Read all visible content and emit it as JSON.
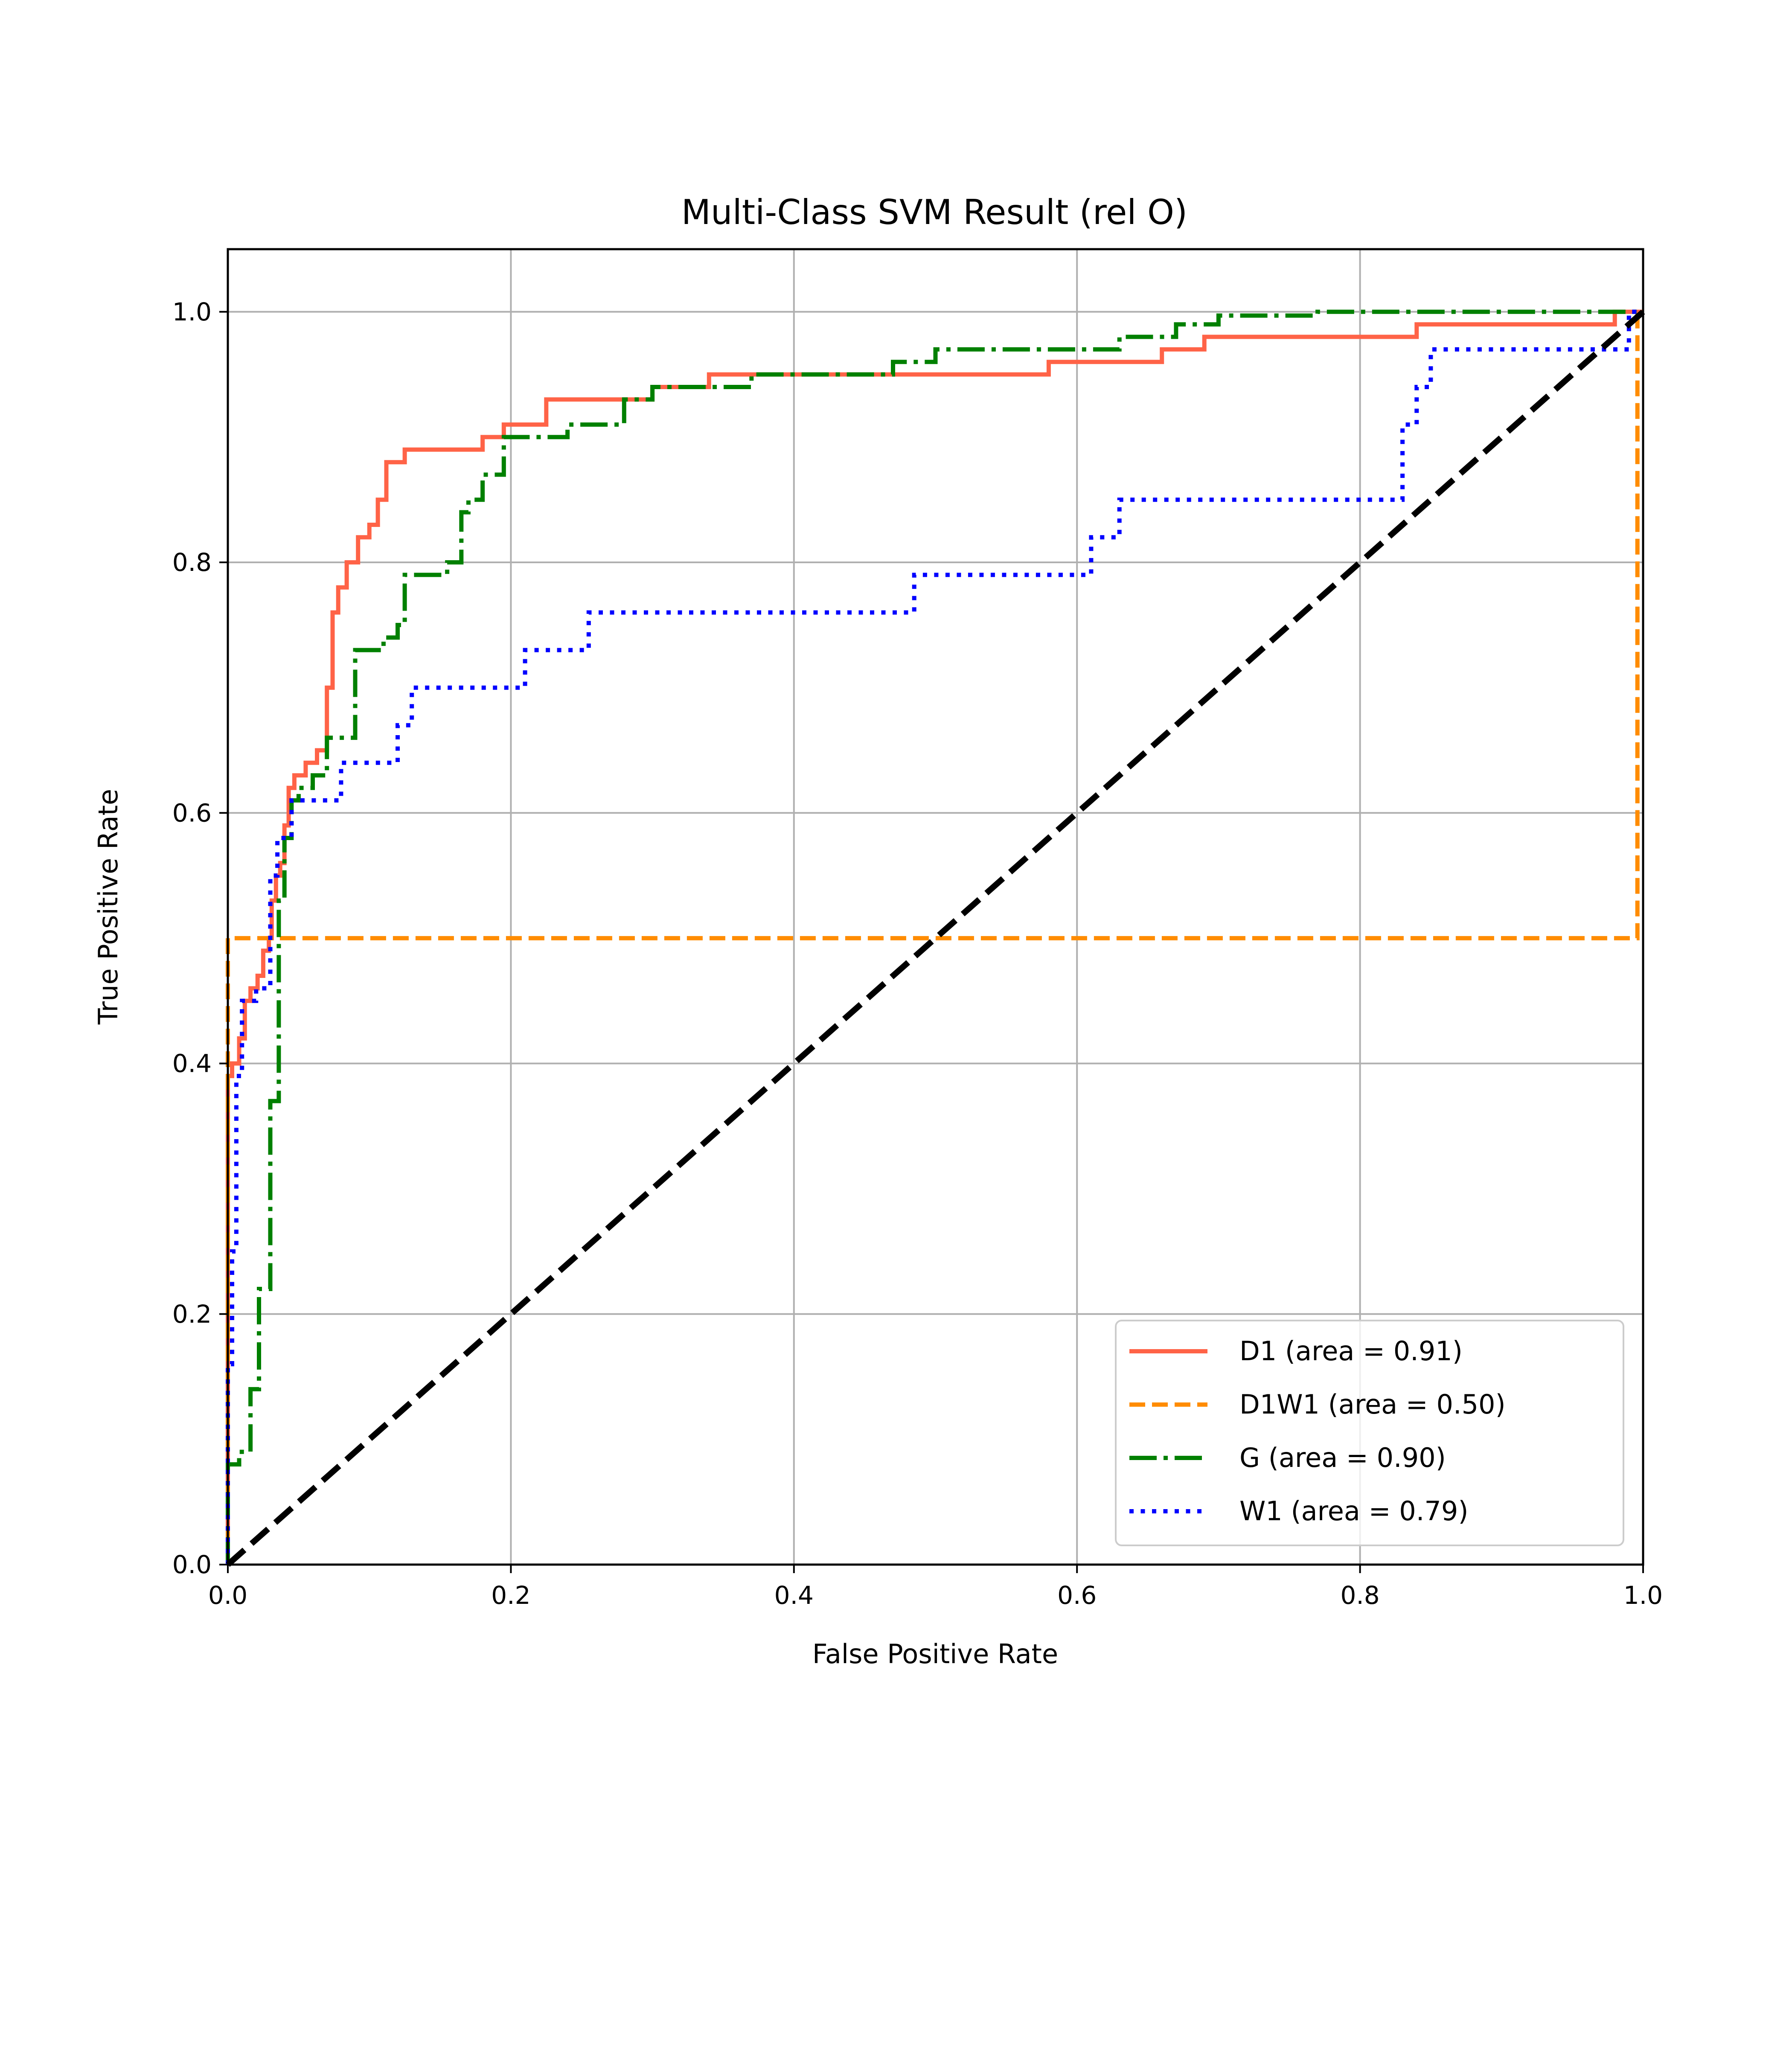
{
  "chart_data": {
    "type": "line",
    "title": "Multi-Class SVM Result (rel O)",
    "xlabel": "False Positive Rate",
    "ylabel": "True Positive Rate",
    "xlim": [
      0.0,
      1.0
    ],
    "ylim": [
      0.0,
      1.05
    ],
    "xticks": [
      "0.0",
      "0.2",
      "0.4",
      "0.6",
      "0.8",
      "1.0"
    ],
    "yticks": [
      "0.0",
      "0.2",
      "0.4",
      "0.6",
      "0.8",
      "1.0"
    ],
    "grid": true,
    "legend_position": "lower right",
    "series": [
      {
        "name": "D1 (area = 0.91)",
        "color": "#ff6347",
        "style": "solid",
        "x": [
          0.0,
          0.0,
          0.003,
          0.003,
          0.008,
          0.008,
          0.012,
          0.012,
          0.016,
          0.016,
          0.021,
          0.021,
          0.025,
          0.025,
          0.029,
          0.029,
          0.031,
          0.031,
          0.034,
          0.034,
          0.037,
          0.037,
          0.04,
          0.04,
          0.043,
          0.043,
          0.047,
          0.047,
          0.055,
          0.055,
          0.063,
          0.063,
          0.07,
          0.07,
          0.074,
          0.074,
          0.078,
          0.078,
          0.08,
          0.08,
          0.084,
          0.084,
          0.092,
          0.092,
          0.1,
          0.1,
          0.106,
          0.106,
          0.11,
          0.11,
          0.112,
          0.112,
          0.125,
          0.125,
          0.18,
          0.18,
          0.195,
          0.195,
          0.225,
          0.225,
          0.27,
          0.27,
          0.3,
          0.3,
          0.34,
          0.34,
          0.38,
          0.38,
          0.58,
          0.58,
          0.66,
          0.66,
          0.69,
          0.69,
          0.84,
          0.84,
          0.98,
          0.98,
          1.0
        ],
        "y": [
          0.0,
          0.39,
          0.39,
          0.4,
          0.4,
          0.42,
          0.42,
          0.45,
          0.45,
          0.46,
          0.46,
          0.47,
          0.47,
          0.49,
          0.49,
          0.5,
          0.5,
          0.53,
          0.53,
          0.55,
          0.55,
          0.56,
          0.56,
          0.59,
          0.59,
          0.62,
          0.62,
          0.63,
          0.63,
          0.64,
          0.64,
          0.65,
          0.65,
          0.7,
          0.7,
          0.76,
          0.76,
          0.78,
          0.78,
          0.78,
          0.78,
          0.8,
          0.8,
          0.82,
          0.82,
          0.83,
          0.83,
          0.85,
          0.85,
          0.85,
          0.85,
          0.88,
          0.88,
          0.89,
          0.89,
          0.9,
          0.9,
          0.91,
          0.91,
          0.93,
          0.93,
          0.93,
          0.93,
          0.94,
          0.94,
          0.95,
          0.95,
          0.95,
          0.95,
          0.96,
          0.96,
          0.97,
          0.97,
          0.98,
          0.98,
          0.99,
          0.99,
          1.0,
          1.0
        ]
      },
      {
        "name": "D1W1 (area = 0.50)",
        "color": "#ff8c00",
        "style": "dashed",
        "x": [
          0.0,
          0.0,
          0.996,
          0.996,
          1.0
        ],
        "y": [
          0.0,
          0.5,
          0.5,
          1.0,
          1.0
        ]
      },
      {
        "name": "G (area = 0.90)",
        "color": "#008000",
        "style": "dashdot",
        "x": [
          0.0,
          0.0,
          0.008,
          0.008,
          0.016,
          0.016,
          0.022,
          0.022,
          0.03,
          0.03,
          0.036,
          0.036,
          0.04,
          0.04,
          0.045,
          0.045,
          0.05,
          0.05,
          0.06,
          0.06,
          0.07,
          0.07,
          0.09,
          0.09,
          0.11,
          0.11,
          0.12,
          0.12,
          0.125,
          0.125,
          0.155,
          0.155,
          0.165,
          0.165,
          0.17,
          0.17,
          0.18,
          0.18,
          0.195,
          0.195,
          0.24,
          0.24,
          0.28,
          0.28,
          0.3,
          0.3,
          0.37,
          0.37,
          0.47,
          0.47,
          0.5,
          0.5,
          0.51,
          0.51,
          0.52,
          0.52,
          0.63,
          0.63,
          0.67,
          0.67,
          0.68,
          0.68,
          0.7,
          0.7,
          0.77,
          0.77,
          1.0
        ],
        "y": [
          0.0,
          0.08,
          0.08,
          0.09,
          0.09,
          0.14,
          0.14,
          0.22,
          0.22,
          0.37,
          0.37,
          0.53,
          0.53,
          0.58,
          0.58,
          0.61,
          0.61,
          0.62,
          0.62,
          0.63,
          0.63,
          0.66,
          0.66,
          0.73,
          0.73,
          0.74,
          0.74,
          0.75,
          0.75,
          0.79,
          0.79,
          0.8,
          0.8,
          0.84,
          0.84,
          0.85,
          0.85,
          0.87,
          0.87,
          0.9,
          0.9,
          0.91,
          0.91,
          0.93,
          0.93,
          0.94,
          0.94,
          0.95,
          0.95,
          0.96,
          0.96,
          0.97,
          0.97,
          0.97,
          0.97,
          0.97,
          0.97,
          0.98,
          0.98,
          0.99,
          0.99,
          0.99,
          0.99,
          0.997,
          0.997,
          1.0,
          1.0
        ]
      },
      {
        "name": "W1 (area = 0.79)",
        "color": "#0000ff",
        "style": "dotted",
        "x": [
          0.0,
          0.0,
          0.003,
          0.003,
          0.006,
          0.006,
          0.01,
          0.01,
          0.02,
          0.02,
          0.03,
          0.03,
          0.035,
          0.035,
          0.045,
          0.045,
          0.08,
          0.08,
          0.12,
          0.12,
          0.13,
          0.13,
          0.21,
          0.21,
          0.255,
          0.255,
          0.485,
          0.485,
          0.61,
          0.61,
          0.63,
          0.63,
          0.83,
          0.83,
          0.84,
          0.84,
          0.85,
          0.85,
          0.99,
          0.99,
          1.0
        ],
        "y": [
          0.0,
          0.16,
          0.16,
          0.25,
          0.25,
          0.39,
          0.39,
          0.45,
          0.45,
          0.46,
          0.46,
          0.55,
          0.55,
          0.58,
          0.58,
          0.61,
          0.61,
          0.64,
          0.64,
          0.67,
          0.67,
          0.7,
          0.7,
          0.73,
          0.73,
          0.76,
          0.76,
          0.79,
          0.79,
          0.82,
          0.82,
          0.85,
          0.85,
          0.91,
          0.91,
          0.94,
          0.94,
          0.97,
          0.97,
          1.0,
          1.0
        ]
      },
      {
        "name": "",
        "color": "#000000",
        "style": "dashed",
        "x": [
          0.0,
          1.0
        ],
        "y": [
          0.0,
          1.0
        ]
      }
    ]
  }
}
